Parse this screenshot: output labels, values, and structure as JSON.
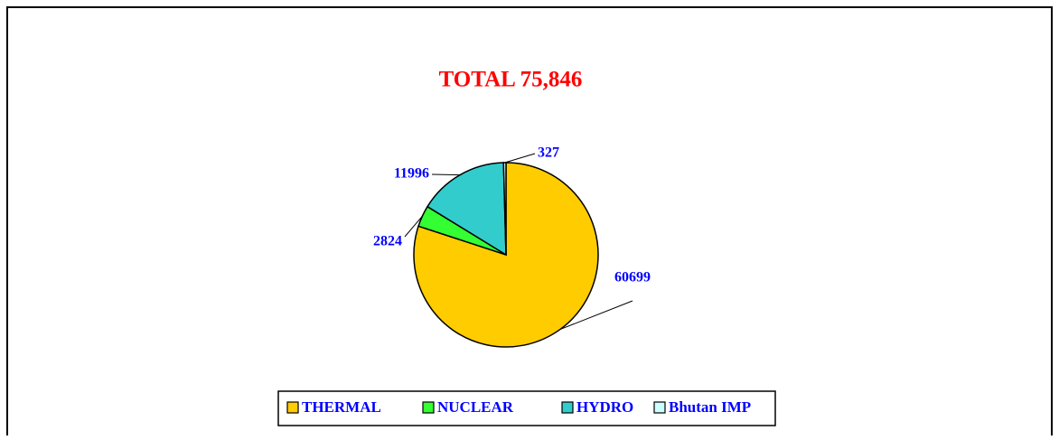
{
  "chart_data": {
    "type": "pie",
    "title": "TOTAL 75,846",
    "categories": [
      "THERMAL",
      "NUCLEAR",
      "HYDRO",
      "Bhutan IMP"
    ],
    "values": [
      60699,
      2824,
      11996,
      327
    ],
    "colors": [
      "#ffcc00",
      "#33ff33",
      "#33cccc",
      "#ccffff"
    ],
    "legend": "bottom"
  }
}
